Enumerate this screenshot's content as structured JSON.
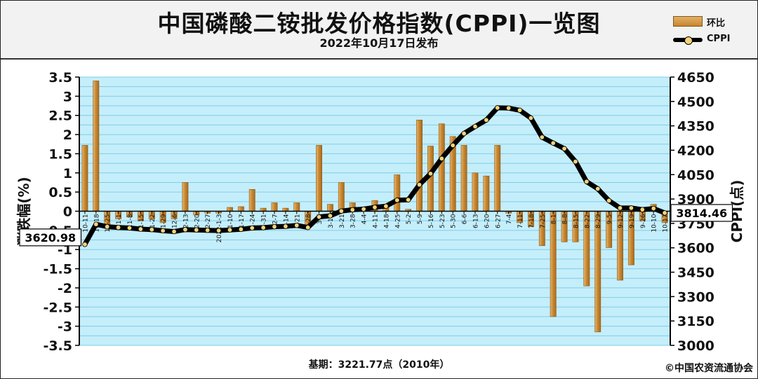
{
  "header": {
    "title": "中国磷酸二铵批发价格指数(CPPI)一览图",
    "subtitle": "2022年10月17日发布"
  },
  "legend": {
    "bar_label": "环比",
    "line_label": "CPPI"
  },
  "footer": {
    "base": "基期：3221.77点（2010年）",
    "copyright": "©中国农资流通协会"
  },
  "callouts": {
    "start": "3620.98",
    "end": "3814.46"
  },
  "colors": {
    "plot_bg": "#c5eefb",
    "grid": "#7fcde8",
    "bar": "#c8862d",
    "line": "#000000",
    "marker": "#f5d27a"
  },
  "chart_data": {
    "type": "bar+line",
    "ylabel_left": "涨跌幅(%)",
    "ylabel_right": "CPPI(点)",
    "ylim_left": [
      -3.5,
      3.5
    ],
    "ylim_right": [
      3000,
      4650
    ],
    "left_ticks": [
      "3.5",
      "3",
      "2.5",
      "2",
      "1.5",
      "1",
      "0.5",
      "0",
      "-0.5",
      "-1",
      "-1.5",
      "-2",
      "-2.5",
      "-3",
      "-3.5"
    ],
    "right_ticks": [
      "4650",
      "4500",
      "4350",
      "4200",
      "4050",
      "3900",
      "3750",
      "3600",
      "3450",
      "3300",
      "3150",
      "3000"
    ],
    "categories": [
      "10-11",
      "10-18",
      "10-25",
      "11-1",
      "11-8",
      "11-15",
      "11-22",
      "11-29",
      "12-6",
      "12-13",
      "12-20",
      "12-27",
      "2022-1-3",
      "1-10",
      "1-17",
      "1-24",
      "1-31",
      "2-7",
      "2-14",
      "2-21",
      "2-28",
      "3-7",
      "3-14",
      "3-21",
      "3-28",
      "4-4",
      "4-11",
      "4-18",
      "4-25",
      "5-2",
      "5-9",
      "5-16",
      "5-23",
      "5-30",
      "6-6",
      "6-13",
      "6-20",
      "6-27",
      "7-4",
      "7-11",
      "7-18",
      "7-25",
      "8-1",
      "8-8",
      "8-15",
      "8-22",
      "8-29",
      "9-5",
      "9-12",
      "9-19",
      "9-26",
      "10-10",
      "10-17"
    ],
    "tick_labels": [
      "10-11",
      "10-18",
      "10-25",
      "11-1",
      "11-8",
      "11-15",
      "11-22",
      "11-29",
      "12-6",
      "12-13",
      "12-20",
      "12-27",
      "2022-1-3",
      "1-10",
      "1-17",
      "1-24",
      "1-31",
      "2-7",
      "2-14",
      "2-21",
      "2-28",
      "3-7",
      "3-14",
      "3-21",
      "3-28",
      "4-4",
      "4-11",
      "4-18",
      "4-25",
      "5-2",
      "5-9",
      "5-16",
      "5-23",
      "5-30",
      "6-6",
      "6-13",
      "6-20",
      "6-27",
      "7-4",
      "7-11",
      "7-18",
      "7-25",
      "8-1",
      "8-8",
      "8-15",
      "8-22",
      "8-29",
      "9-5",
      "9-12",
      "9-19",
      "9-26",
      "10-10",
      "10-17"
    ],
    "series": [
      {
        "name": "环比",
        "type": "bar",
        "values": [
          1.72,
          3.4,
          -0.35,
          -0.2,
          -0.15,
          -0.25,
          -0.2,
          -0.3,
          -0.2,
          0.75,
          -0.1,
          -0.05,
          -0.05,
          0.1,
          0.12,
          0.57,
          0.08,
          0.22,
          0.08,
          0.22,
          -0.4,
          1.72,
          0.18,
          0.75,
          0.22,
          0.1,
          0.28,
          0.18,
          0.95,
          0.05,
          2.38,
          1.7,
          2.28,
          1.95,
          1.72,
          1.0,
          0.92,
          1.72,
          -0.05,
          -0.3,
          -0.4,
          -0.9,
          -2.75,
          -0.8,
          -0.8,
          -1.95,
          -3.15,
          -0.95,
          -1.8,
          -1.4,
          -0.25,
          0.18,
          -0.3
        ]
      },
      {
        "name": "CPPI",
        "type": "line",
        "values": [
          3620.98,
          3745,
          3730,
          3725,
          3722,
          3715,
          3712,
          3705,
          3700,
          3712,
          3710,
          3708,
          3706,
          3710,
          3714,
          3722,
          3724,
          3730,
          3732,
          3738,
          3725,
          3790,
          3797,
          3826,
          3834,
          3838,
          3849,
          3856,
          3893,
          3895,
          3988,
          4056,
          4149,
          4230,
          4303,
          4346,
          4386,
          4461,
          4459,
          4446,
          4398,
          4280,
          4244,
          4210,
          4130,
          4007,
          3963,
          3890,
          3845,
          3845,
          3835,
          3842,
          3814.46
        ]
      }
    ]
  }
}
